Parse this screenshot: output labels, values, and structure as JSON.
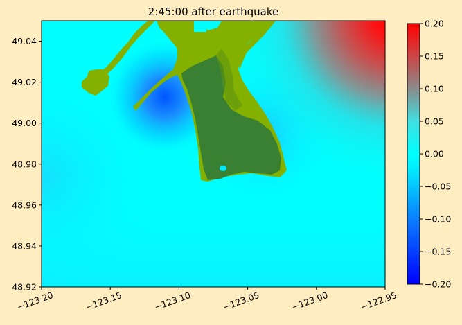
{
  "chart_data": {
    "type": "heatmap",
    "title": "2:45:00 after earthquake",
    "xlabel": "",
    "ylabel": "",
    "xlim": [
      -123.2,
      -122.95
    ],
    "ylim": [
      48.92,
      49.05
    ],
    "x_ticks": [
      -123.2,
      -123.15,
      -123.1,
      -123.05,
      -123.0,
      -122.95
    ],
    "x_tick_labels": [
      "−123.20",
      "−123.15",
      "−123.10",
      "−123.05",
      "−123.00",
      "−122.95"
    ],
    "y_ticks": [
      48.92,
      48.94,
      48.96,
      48.98,
      49.0,
      49.02,
      49.04
    ],
    "y_tick_labels": [
      "48.92",
      "48.94",
      "48.96",
      "48.98",
      "49.00",
      "49.02",
      "49.04"
    ],
    "grid": false,
    "colorbar": {
      "label": "",
      "range": [
        -0.2,
        0.2
      ],
      "ticks": [
        -0.2,
        -0.15,
        -0.1,
        -0.05,
        0.0,
        0.05,
        0.1,
        0.15,
        0.2
      ],
      "tick_labels": [
        "−0.20",
        "−0.15",
        "−0.10",
        "−0.05",
        "0.00",
        "0.05",
        "0.10",
        "0.15",
        "0.20"
      ],
      "colormap": [
        {
          "value": -0.2,
          "color": "#0000ff"
        },
        {
          "value": -0.1,
          "color": "#0a7fff"
        },
        {
          "value": -0.02,
          "color": "#00f0ff"
        },
        {
          "value": 0.0,
          "color": "#00ffff"
        },
        {
          "value": 0.05,
          "color": "#40e0e0"
        },
        {
          "value": 0.1,
          "color": "#8b8b8b"
        },
        {
          "value": 0.15,
          "color": "#cc4646"
        },
        {
          "value": 0.2,
          "color": "#ff0000"
        }
      ]
    },
    "colors": {
      "figure_background": "#feedc0",
      "ocean_base": "#00ffff",
      "land": "#84b000",
      "wet_land": "#3a8033"
    }
  }
}
